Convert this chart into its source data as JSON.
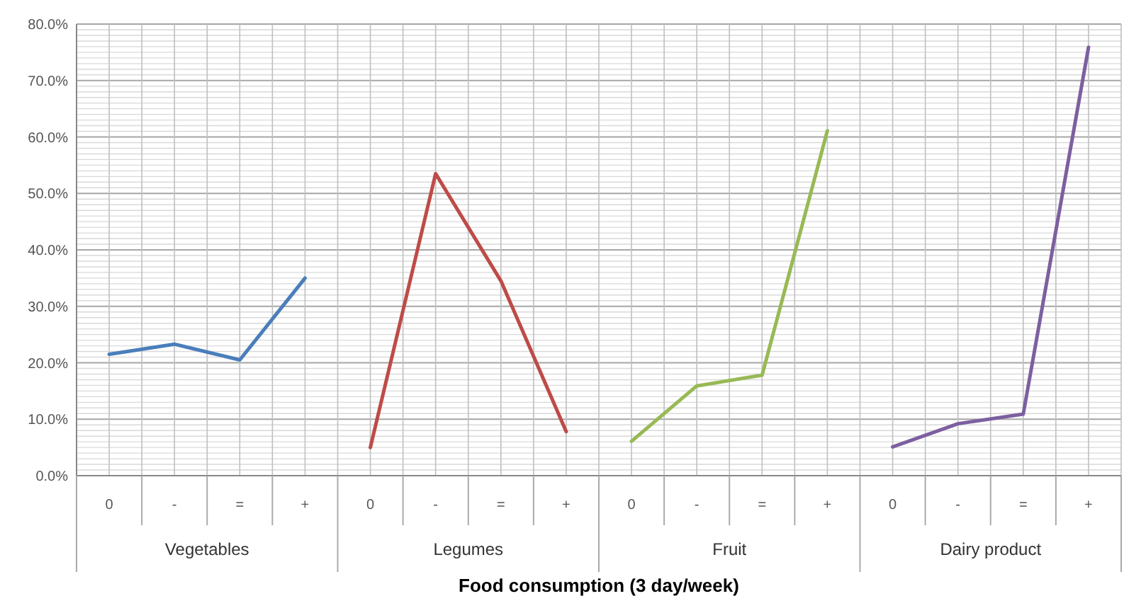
{
  "chart_data": {
    "type": "line",
    "xlabel": "Food consumption (3 day/week)",
    "categories": [
      "0",
      "-",
      "=",
      "+",
      "0",
      "-",
      "=",
      "+",
      "0",
      "-",
      "=",
      "+",
      "0",
      "-",
      "=",
      "+"
    ],
    "series": [
      {
        "color": "#4a7ebb",
        "values": [
          21.5,
          23.3,
          20.5,
          35.0,
          null,
          null,
          null,
          null,
          null,
          null,
          null,
          null,
          null,
          null,
          null,
          null
        ]
      },
      {
        "color": "#be4b48",
        "values": [
          null,
          null,
          null,
          null,
          5.0,
          53.5,
          34.5,
          7.8,
          null,
          null,
          null,
          null,
          null,
          null,
          null,
          null
        ]
      },
      {
        "color": "#98b954",
        "values": [
          null,
          null,
          null,
          null,
          null,
          null,
          null,
          null,
          6.1,
          15.9,
          17.8,
          61.1,
          null,
          null,
          null,
          null
        ]
      },
      {
        "color": "#7d5fa0",
        "values": [
          null,
          null,
          null,
          null,
          null,
          null,
          null,
          null,
          null,
          null,
          null,
          null,
          5.1,
          9.2,
          10.9,
          75.9
        ]
      }
    ],
    "ylim": [
      0,
      80
    ],
    "yticks": [
      {
        "value": 0,
        "label": "0.0%"
      },
      {
        "value": 10,
        "label": "10.0%"
      },
      {
        "value": 20,
        "label": "20.0%"
      },
      {
        "value": 30,
        "label": "30.0%"
      },
      {
        "value": 40,
        "label": "40.0%"
      },
      {
        "value": 50,
        "label": "50.0%"
      },
      {
        "value": 60,
        "label": "60.0%"
      },
      {
        "value": 70,
        "label": "70.0%"
      },
      {
        "value": 80,
        "label": "80.0%"
      }
    ],
    "annotations": [
      "Vegetables",
      "Legumes",
      "Fruit",
      "Dairy product"
    ],
    "grid": true,
    "legend": false,
    "marker": "none",
    "line_style": "solid"
  }
}
